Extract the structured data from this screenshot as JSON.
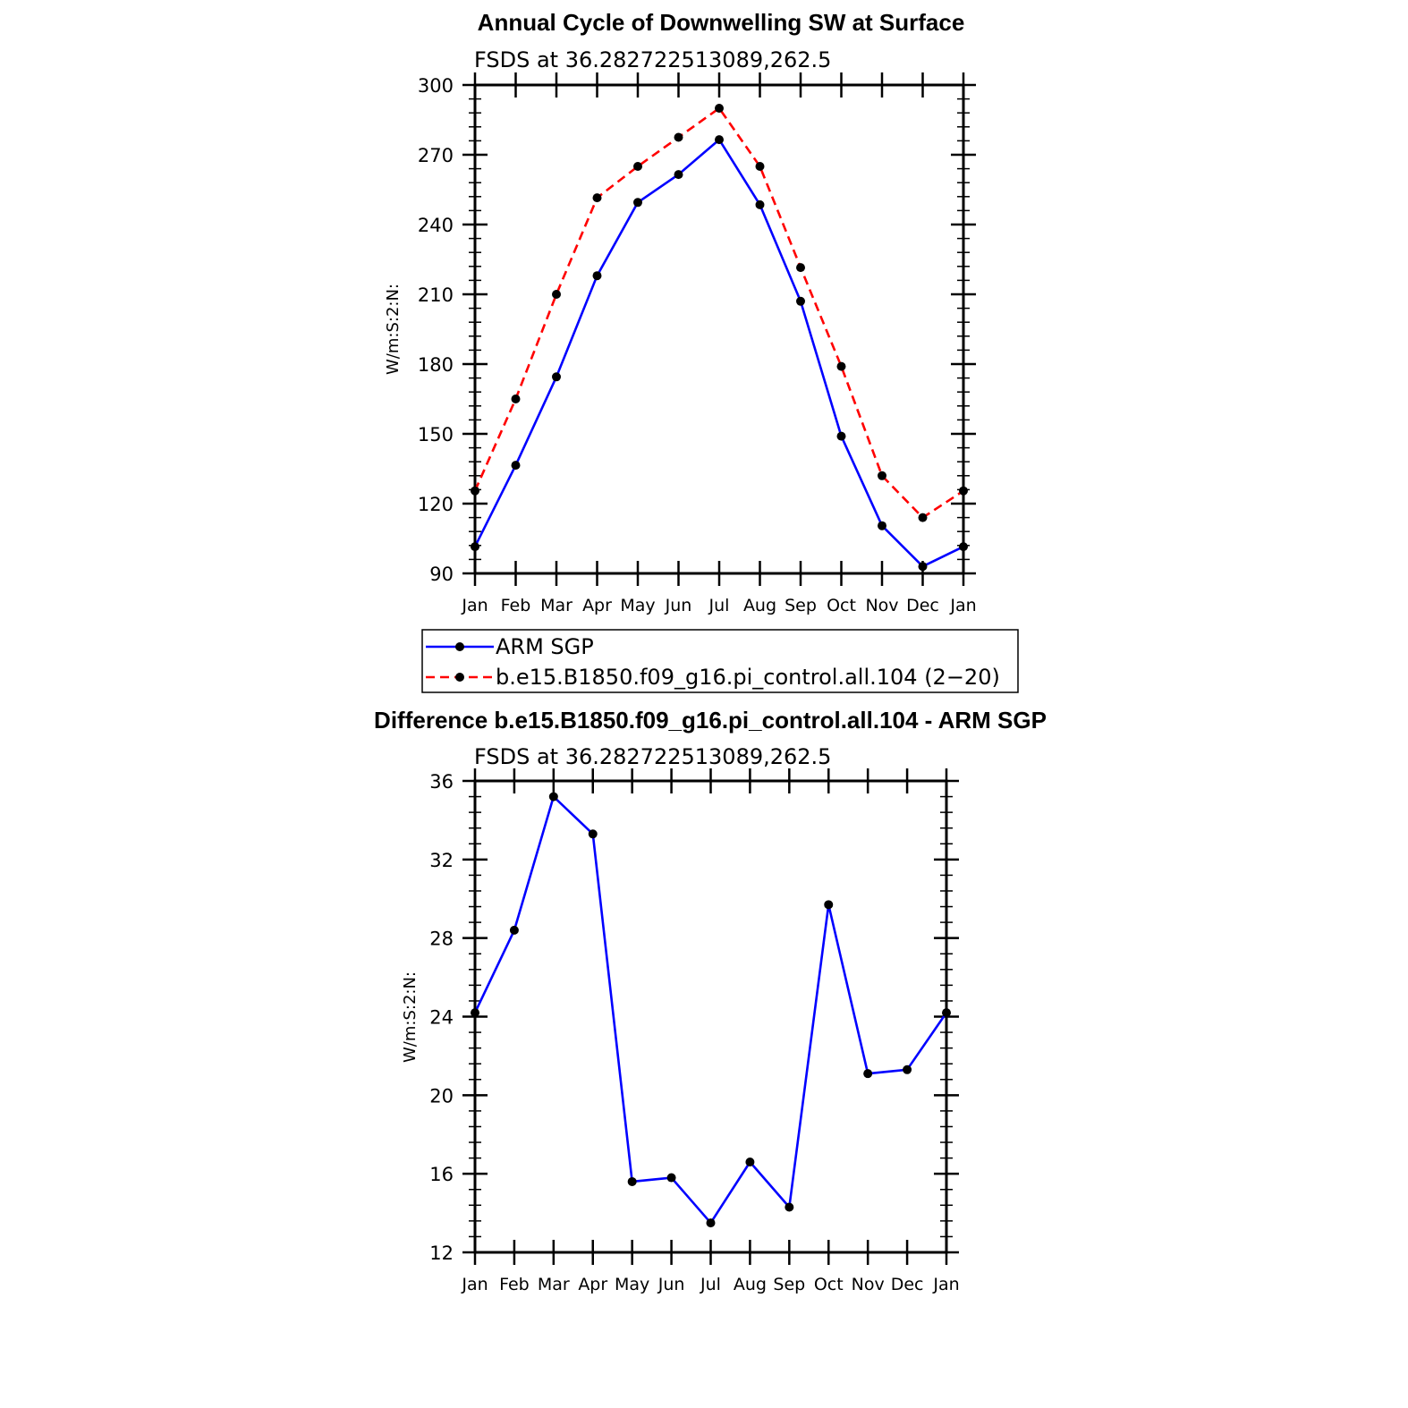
{
  "chart_data": [
    {
      "type": "line",
      "title": "Annual Cycle of Downwelling SW at Surface",
      "subtitle": "FSDS at 36.282722513089,262.5",
      "ylabel": "W/m:S:2:N:",
      "xlabel": "",
      "ylim": [
        90,
        300
      ],
      "yticks": [
        90,
        120,
        150,
        180,
        210,
        240,
        270,
        300
      ],
      "categories": [
        "Jan",
        "Feb",
        "Mar",
        "Apr",
        "May",
        "Jun",
        "Jul",
        "Aug",
        "Sep",
        "Oct",
        "Nov",
        "Dec",
        "Jan"
      ],
      "series": [
        {
          "name": "ARM SGP",
          "color": "#0000ff",
          "line_style": "solid",
          "marker": "filled-circle",
          "values": [
            101.5,
            136.5,
            174.5,
            218,
            249.5,
            261.5,
            276.5,
            248.5,
            207,
            149,
            110.5,
            93,
            101.5
          ]
        },
        {
          "name": "b.e15.B1850.f09_g16.pi_control.all.104 (2−20)",
          "color": "#ff0000",
          "line_style": "dashed",
          "marker": "filled-circle",
          "values": [
            125.5,
            165,
            210,
            251.5,
            265,
            277.5,
            290,
            265,
            221.5,
            179,
            132,
            114,
            125.5
          ]
        }
      ],
      "legend": "below",
      "grid": false
    },
    {
      "type": "line",
      "title": "Difference b.e15.B1850.f09_g16.pi_control.all.104 - ARM SGP",
      "subtitle": "FSDS at 36.282722513089,262.5",
      "ylabel": "W/m:S:2:N:",
      "xlabel": "",
      "ylim": [
        12,
        36
      ],
      "yticks": [
        12,
        16,
        20,
        24,
        28,
        32,
        36
      ],
      "categories": [
        "Jan",
        "Feb",
        "Mar",
        "Apr",
        "May",
        "Jun",
        "Jul",
        "Aug",
        "Sep",
        "Oct",
        "Nov",
        "Dec",
        "Jan"
      ],
      "series": [
        {
          "color": "#0000ff",
          "line_style": "solid",
          "marker": "filled-circle",
          "values": [
            24.2,
            28.4,
            35.2,
            33.3,
            15.6,
            15.8,
            13.5,
            16.6,
            14.3,
            29.7,
            21.1,
            21.3,
            24.2
          ]
        }
      ],
      "legend": "none",
      "grid": false
    }
  ]
}
